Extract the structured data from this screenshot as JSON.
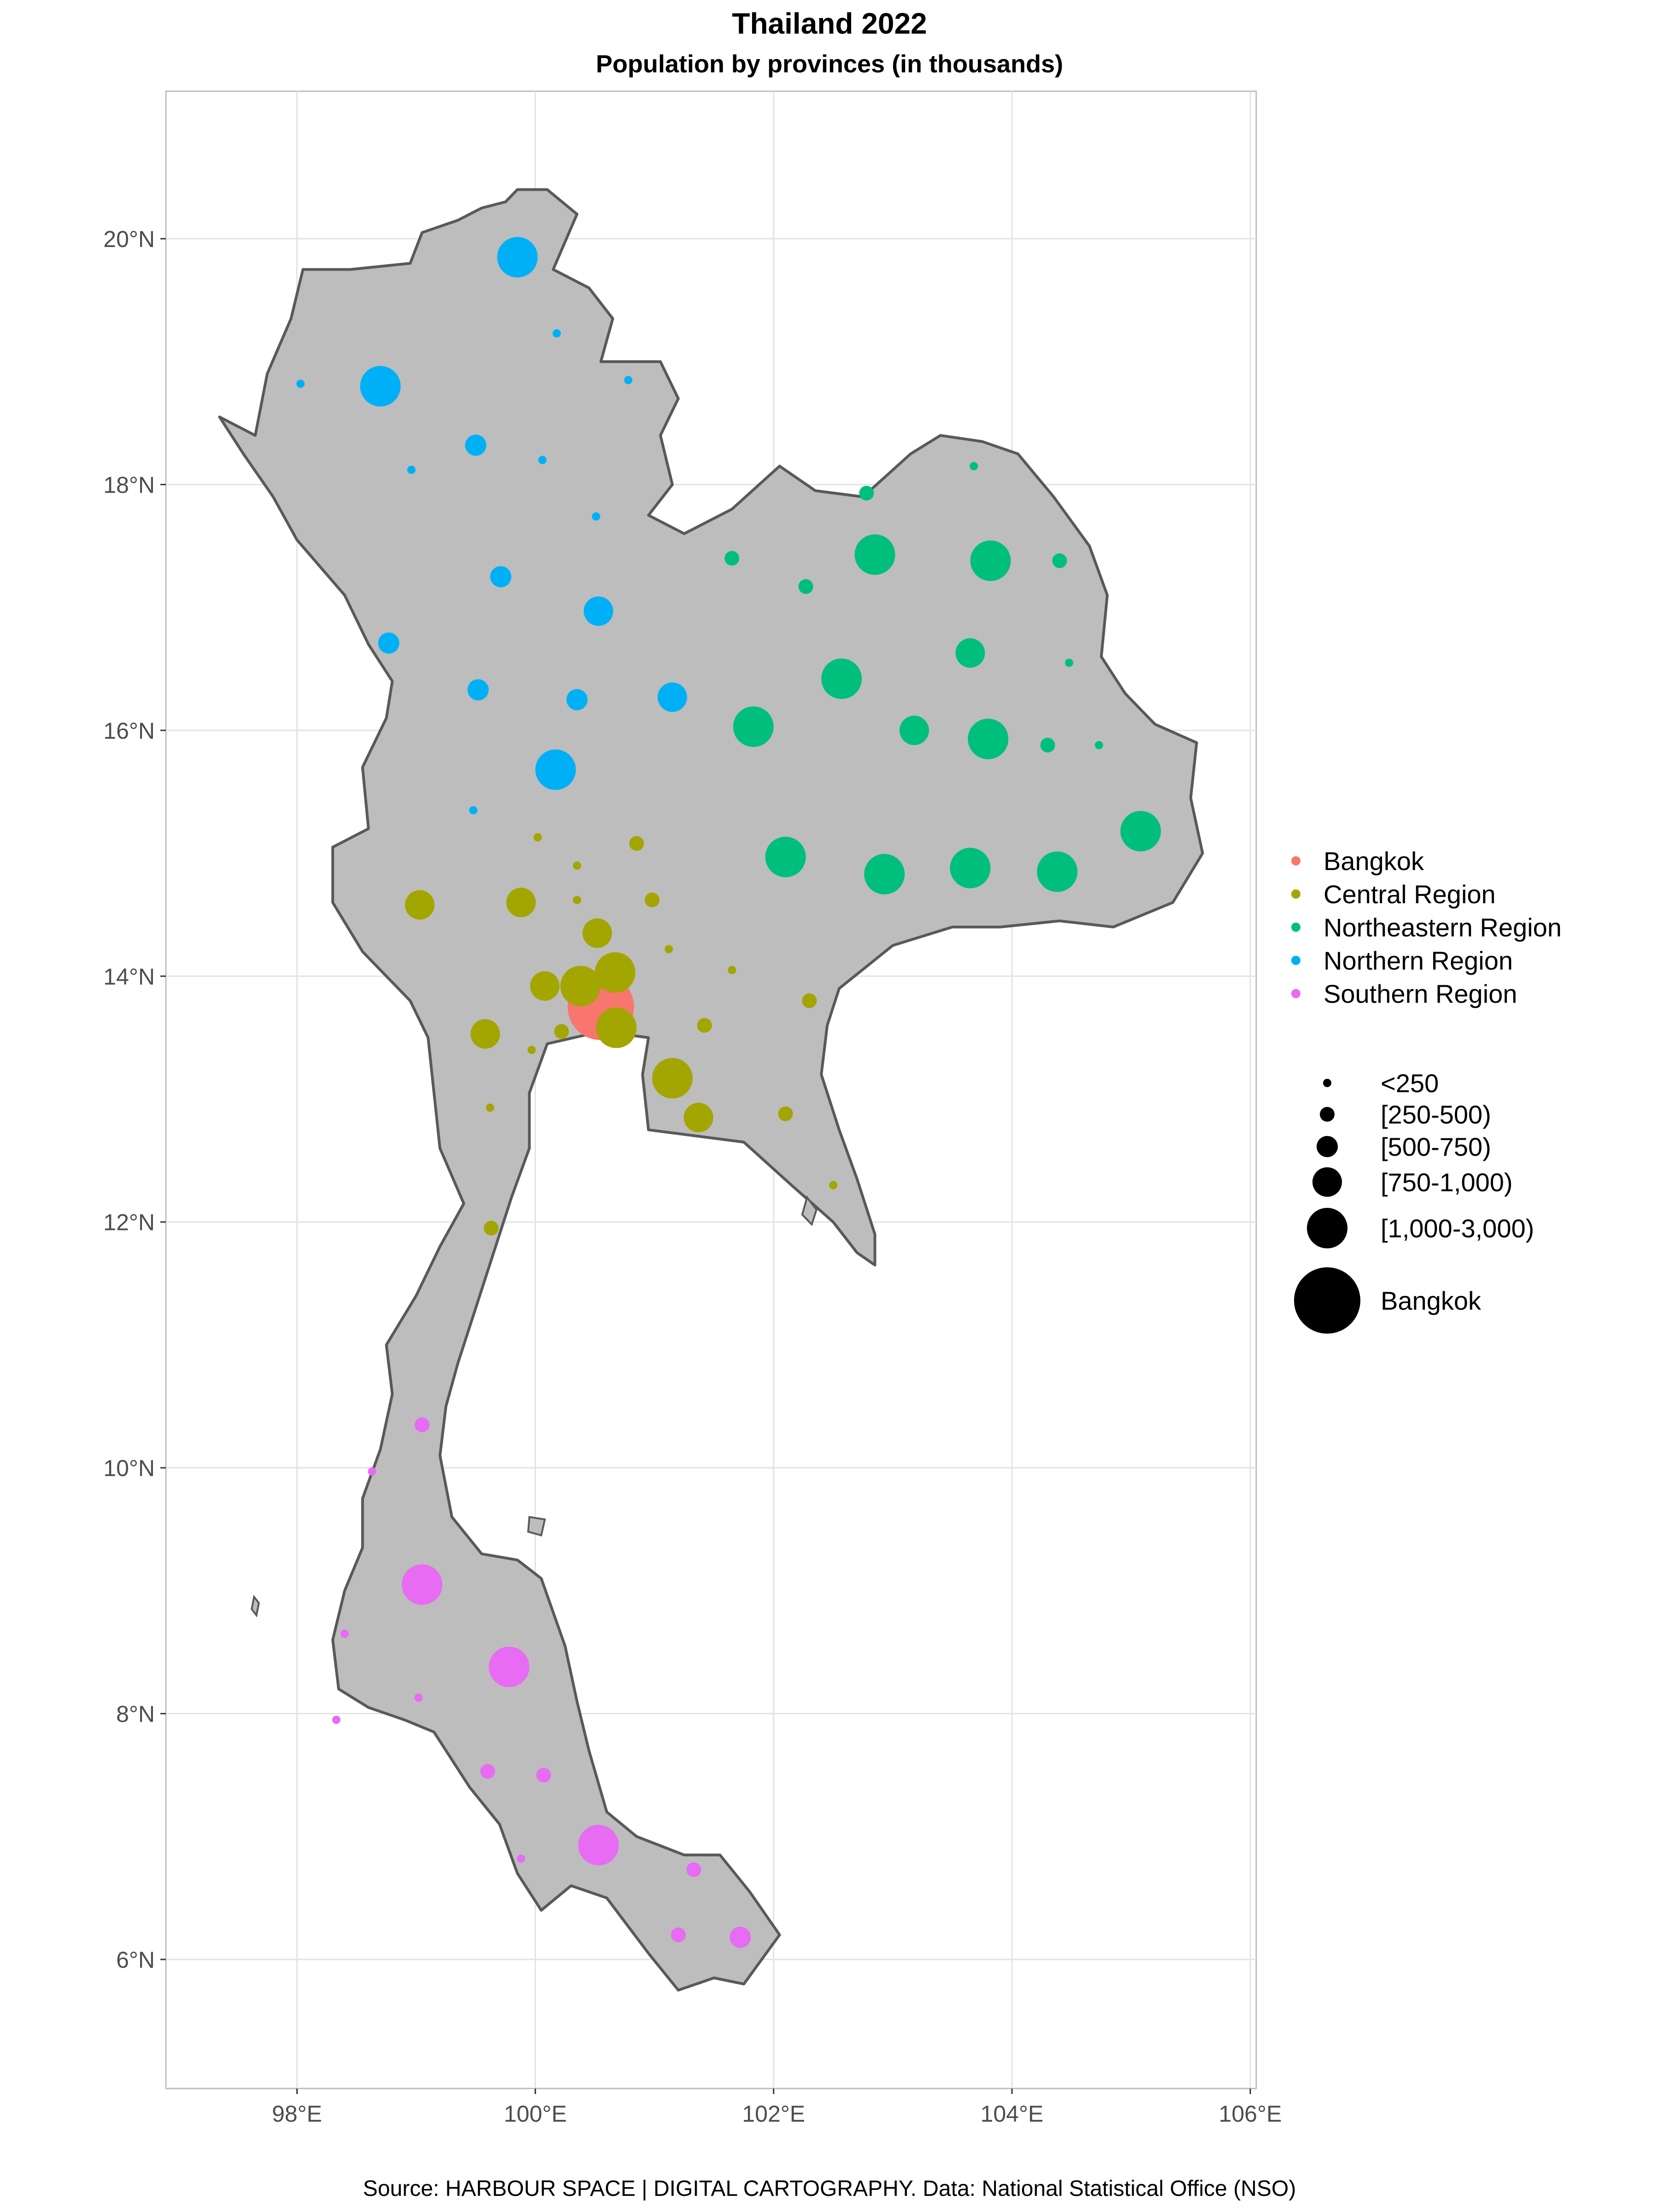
{
  "title": "Thailand 2022",
  "subtitle": "Population by provinces (in thousands)",
  "caption": "Source: HARBOUR SPACE | DIGITAL CARTOGRAPHY. Data: National Statistical Office (NSO)",
  "axes": {
    "x_ticks": [
      {
        "value": 98,
        "label": "98°E"
      },
      {
        "value": 100,
        "label": "100°E"
      },
      {
        "value": 102,
        "label": "102°E"
      },
      {
        "value": 104,
        "label": "104°E"
      },
      {
        "value": 106,
        "label": "106°E"
      }
    ],
    "y_ticks": [
      {
        "value": 6,
        "label": "6°N"
      },
      {
        "value": 8,
        "label": "8°N"
      },
      {
        "value": 10,
        "label": "10°N"
      },
      {
        "value": 12,
        "label": "12°N"
      },
      {
        "value": 14,
        "label": "14°N"
      },
      {
        "value": 16,
        "label": "16°N"
      },
      {
        "value": 18,
        "label": "18°N"
      },
      {
        "value": 20,
        "label": "20°N"
      }
    ],
    "xlim": [
      96.9,
      106.05
    ],
    "ylim": [
      4.95,
      21.2
    ],
    "grid": true
  },
  "colors": {
    "Bangkok": "#F8766D",
    "Central Region": "#A3A500",
    "Northeastern Region": "#00BF7D",
    "Northern Region": "#00B0F6",
    "Southern Region": "#E76BF3",
    "land": "#bdbdbd",
    "border": "#595959"
  },
  "legend_regions": [
    "Bangkok",
    "Central Region",
    "Northeastern Region",
    "Northern Region",
    "Southern Region"
  ],
  "legend_sizes": [
    {
      "label": "<250",
      "class": 1
    },
    {
      "label": "[250-500)",
      "class": 2
    },
    {
      "label": "[500-750)",
      "class": 3
    },
    {
      "label": "[750-1,000)",
      "class": 4
    },
    {
      "label": "[1,000-3,000)",
      "class": 5
    },
    {
      "label": "Bangkok",
      "class": 6
    }
  ],
  "chart_data": {
    "type": "scatter",
    "x_variable": "longitude",
    "y_variable": "latitude",
    "size_variable": "population class",
    "color_variable": "region",
    "points": [
      {
        "region": "Bangkok",
        "lon": 100.55,
        "lat": 13.75,
        "class": 6
      },
      {
        "region": "Northern Region",
        "lon": 99.85,
        "lat": 19.85,
        "class": 5
      },
      {
        "region": "Northern Region",
        "lon": 98.7,
        "lat": 18.8,
        "class": 5
      },
      {
        "region": "Northern Region",
        "lon": 100.17,
        "lat": 15.68,
        "class": 5
      },
      {
        "region": "Northern Region",
        "lon": 100.53,
        "lat": 16.97,
        "class": 4
      },
      {
        "region": "Northern Region",
        "lon": 101.15,
        "lat": 16.27,
        "class": 4
      },
      {
        "region": "Northern Region",
        "lon": 99.5,
        "lat": 18.32,
        "class": 3
      },
      {
        "region": "Northern Region",
        "lon": 99.71,
        "lat": 17.25,
        "class": 3
      },
      {
        "region": "Northern Region",
        "lon": 99.52,
        "lat": 16.33,
        "class": 3
      },
      {
        "region": "Northern Region",
        "lon": 100.35,
        "lat": 16.25,
        "class": 3
      },
      {
        "region": "Northern Region",
        "lon": 98.77,
        "lat": 16.71,
        "class": 3
      },
      {
        "region": "Northern Region",
        "lon": 100.18,
        "lat": 19.23,
        "class": 1
      },
      {
        "region": "Northern Region",
        "lon": 100.78,
        "lat": 18.85,
        "class": 1
      },
      {
        "region": "Northern Region",
        "lon": 98.03,
        "lat": 18.82,
        "class": 1
      },
      {
        "region": "Northern Region",
        "lon": 98.96,
        "lat": 18.12,
        "class": 1
      },
      {
        "region": "Northern Region",
        "lon": 100.06,
        "lat": 18.2,
        "class": 1
      },
      {
        "region": "Northern Region",
        "lon": 100.51,
        "lat": 17.74,
        "class": 1
      },
      {
        "region": "Northern Region",
        "lon": 99.48,
        "lat": 15.35,
        "class": 1
      },
      {
        "region": "Northeastern Region",
        "lon": 101.83,
        "lat": 16.03,
        "class": 5
      },
      {
        "region": "Northeastern Region",
        "lon": 102.57,
        "lat": 16.42,
        "class": 5
      },
      {
        "region": "Northeastern Region",
        "lon": 102.85,
        "lat": 17.43,
        "class": 5
      },
      {
        "region": "Northeastern Region",
        "lon": 103.82,
        "lat": 17.38,
        "class": 5
      },
      {
        "region": "Northeastern Region",
        "lon": 103.8,
        "lat": 15.93,
        "class": 5
      },
      {
        "region": "Northeastern Region",
        "lon": 102.1,
        "lat": 14.97,
        "class": 5
      },
      {
        "region": "Northeastern Region",
        "lon": 102.93,
        "lat": 14.83,
        "class": 5
      },
      {
        "region": "Northeastern Region",
        "lon": 103.65,
        "lat": 14.88,
        "class": 5
      },
      {
        "region": "Northeastern Region",
        "lon": 104.38,
        "lat": 14.85,
        "class": 5
      },
      {
        "region": "Northeastern Region",
        "lon": 105.08,
        "lat": 15.18,
        "class": 5
      },
      {
        "region": "Northeastern Region",
        "lon": 103.65,
        "lat": 16.63,
        "class": 4
      },
      {
        "region": "Northeastern Region",
        "lon": 103.18,
        "lat": 16.0,
        "class": 4
      },
      {
        "region": "Northeastern Region",
        "lon": 102.78,
        "lat": 17.93,
        "class": 2
      },
      {
        "region": "Northeastern Region",
        "lon": 101.65,
        "lat": 17.4,
        "class": 2
      },
      {
        "region": "Northeastern Region",
        "lon": 102.27,
        "lat": 17.17,
        "class": 2
      },
      {
        "region": "Northeastern Region",
        "lon": 104.4,
        "lat": 17.38,
        "class": 2
      },
      {
        "region": "Northeastern Region",
        "lon": 104.3,
        "lat": 15.88,
        "class": 2
      },
      {
        "region": "Northeastern Region",
        "lon": 103.68,
        "lat": 18.15,
        "class": 1
      },
      {
        "region": "Northeastern Region",
        "lon": 104.48,
        "lat": 16.55,
        "class": 1
      },
      {
        "region": "Northeastern Region",
        "lon": 104.73,
        "lat": 15.88,
        "class": 1
      },
      {
        "region": "Central Region",
        "lon": 100.67,
        "lat": 14.03,
        "class": 5
      },
      {
        "region": "Central Region",
        "lon": 100.68,
        "lat": 13.58,
        "class": 5
      },
      {
        "region": "Central Region",
        "lon": 100.38,
        "lat": 13.92,
        "class": 5
      },
      {
        "region": "Central Region",
        "lon": 101.15,
        "lat": 13.17,
        "class": 5
      },
      {
        "region": "Central Region",
        "lon": 99.03,
        "lat": 14.58,
        "class": 4
      },
      {
        "region": "Central Region",
        "lon": 99.88,
        "lat": 14.6,
        "class": 4
      },
      {
        "region": "Central Region",
        "lon": 100.52,
        "lat": 14.35,
        "class": 4
      },
      {
        "region": "Central Region",
        "lon": 100.08,
        "lat": 13.92,
        "class": 4
      },
      {
        "region": "Central Region",
        "lon": 99.58,
        "lat": 13.53,
        "class": 4
      },
      {
        "region": "Central Region",
        "lon": 101.37,
        "lat": 12.85,
        "class": 4
      },
      {
        "region": "Central Region",
        "lon": 100.85,
        "lat": 15.08,
        "class": 2
      },
      {
        "region": "Central Region",
        "lon": 100.98,
        "lat": 14.62,
        "class": 2
      },
      {
        "region": "Central Region",
        "lon": 100.22,
        "lat": 13.55,
        "class": 2
      },
      {
        "region": "Central Region",
        "lon": 101.42,
        "lat": 13.6,
        "class": 2
      },
      {
        "region": "Central Region",
        "lon": 102.3,
        "lat": 13.8,
        "class": 2
      },
      {
        "region": "Central Region",
        "lon": 102.1,
        "lat": 12.88,
        "class": 2
      },
      {
        "region": "Central Region",
        "lon": 99.63,
        "lat": 11.95,
        "class": 2
      },
      {
        "region": "Central Region",
        "lon": 100.02,
        "lat": 15.13,
        "class": 1
      },
      {
        "region": "Central Region",
        "lon": 100.35,
        "lat": 14.9,
        "class": 1
      },
      {
        "region": "Central Region",
        "lon": 100.35,
        "lat": 14.62,
        "class": 1
      },
      {
        "region": "Central Region",
        "lon": 101.12,
        "lat": 14.22,
        "class": 1
      },
      {
        "region": "Central Region",
        "lon": 101.65,
        "lat": 14.05,
        "class": 1
      },
      {
        "region": "Central Region",
        "lon": 99.97,
        "lat": 13.4,
        "class": 1
      },
      {
        "region": "Central Region",
        "lon": 99.62,
        "lat": 12.93,
        "class": 1
      },
      {
        "region": "Central Region",
        "lon": 102.5,
        "lat": 12.3,
        "class": 1
      },
      {
        "region": "Southern Region",
        "lon": 99.05,
        "lat": 9.05,
        "class": 5
      },
      {
        "region": "Southern Region",
        "lon": 99.78,
        "lat": 8.38,
        "class": 5
      },
      {
        "region": "Southern Region",
        "lon": 100.53,
        "lat": 6.93,
        "class": 5
      },
      {
        "region": "Southern Region",
        "lon": 101.72,
        "lat": 6.18,
        "class": 3
      },
      {
        "region": "Southern Region",
        "lon": 99.05,
        "lat": 10.35,
        "class": 2
      },
      {
        "region": "Southern Region",
        "lon": 99.6,
        "lat": 7.53,
        "class": 2
      },
      {
        "region": "Southern Region",
        "lon": 100.07,
        "lat": 7.5,
        "class": 2
      },
      {
        "region": "Southern Region",
        "lon": 101.33,
        "lat": 6.73,
        "class": 2
      },
      {
        "region": "Southern Region",
        "lon": 101.2,
        "lat": 6.2,
        "class": 2
      },
      {
        "region": "Southern Region",
        "lon": 98.4,
        "lat": 8.65,
        "class": 1
      },
      {
        "region": "Southern Region",
        "lon": 98.33,
        "lat": 7.95,
        "class": 1
      },
      {
        "region": "Southern Region",
        "lon": 99.02,
        "lat": 8.13,
        "class": 1
      },
      {
        "region": "Southern Region",
        "lon": 98.63,
        "lat": 9.97,
        "class": 1
      },
      {
        "region": "Southern Region",
        "lon": 99.88,
        "lat": 6.82,
        "class": 1
      }
    ]
  },
  "outline": [
    [
      97.35,
      18.55
    ],
    [
      97.65,
      18.4
    ],
    [
      97.75,
      18.9
    ],
    [
      97.95,
      19.35
    ],
    [
      98.05,
      19.75
    ],
    [
      98.45,
      19.75
    ],
    [
      98.95,
      19.8
    ],
    [
      99.05,
      20.05
    ],
    [
      99.35,
      20.15
    ],
    [
      99.55,
      20.25
    ],
    [
      99.75,
      20.3
    ],
    [
      99.85,
      20.4
    ],
    [
      100.1,
      20.4
    ],
    [
      100.35,
      20.2
    ],
    [
      100.15,
      19.75
    ],
    [
      100.45,
      19.6
    ],
    [
      100.65,
      19.35
    ],
    [
      100.55,
      19.0
    ],
    [
      101.05,
      19.0
    ],
    [
      101.2,
      18.7
    ],
    [
      101.05,
      18.4
    ],
    [
      101.15,
      18.0
    ],
    [
      100.95,
      17.75
    ],
    [
      101.25,
      17.6
    ],
    [
      101.65,
      17.8
    ],
    [
      102.05,
      18.15
    ],
    [
      102.35,
      17.95
    ],
    [
      102.75,
      17.9
    ],
    [
      103.15,
      18.25
    ],
    [
      103.4,
      18.4
    ],
    [
      103.75,
      18.35
    ],
    [
      104.05,
      18.25
    ],
    [
      104.35,
      17.9
    ],
    [
      104.65,
      17.5
    ],
    [
      104.8,
      17.1
    ],
    [
      104.75,
      16.6
    ],
    [
      104.95,
      16.3
    ],
    [
      105.2,
      16.05
    ],
    [
      105.55,
      15.9
    ],
    [
      105.5,
      15.45
    ],
    [
      105.6,
      15.0
    ],
    [
      105.35,
      14.6
    ],
    [
      104.85,
      14.4
    ],
    [
      104.4,
      14.45
    ],
    [
      103.9,
      14.4
    ],
    [
      103.5,
      14.4
    ],
    [
      103.0,
      14.25
    ],
    [
      102.55,
      13.9
    ],
    [
      102.45,
      13.6
    ],
    [
      102.4,
      13.2
    ],
    [
      102.55,
      12.75
    ],
    [
      102.7,
      12.35
    ],
    [
      102.85,
      11.9
    ],
    [
      102.85,
      11.65
    ],
    [
      102.7,
      11.75
    ],
    [
      102.5,
      12.0
    ],
    [
      102.15,
      12.3
    ],
    [
      101.75,
      12.65
    ],
    [
      101.35,
      12.7
    ],
    [
      100.95,
      12.75
    ],
    [
      100.9,
      13.2
    ],
    [
      100.95,
      13.5
    ],
    [
      100.55,
      13.55
    ],
    [
      100.1,
      13.45
    ],
    [
      99.95,
      13.05
    ],
    [
      99.95,
      12.6
    ],
    [
      99.8,
      12.2
    ],
    [
      99.65,
      11.75
    ],
    [
      99.5,
      11.3
    ],
    [
      99.35,
      10.85
    ],
    [
      99.25,
      10.5
    ],
    [
      99.2,
      10.1
    ],
    [
      99.3,
      9.6
    ],
    [
      99.55,
      9.3
    ],
    [
      99.85,
      9.25
    ],
    [
      100.05,
      9.1
    ],
    [
      100.25,
      8.55
    ],
    [
      100.35,
      8.1
    ],
    [
      100.45,
      7.7
    ],
    [
      100.6,
      7.2
    ],
    [
      100.85,
      7.0
    ],
    [
      101.25,
      6.85
    ],
    [
      101.55,
      6.85
    ],
    [
      101.8,
      6.55
    ],
    [
      102.05,
      6.2
    ],
    [
      101.75,
      5.8
    ],
    [
      101.5,
      5.85
    ],
    [
      101.2,
      5.75
    ],
    [
      100.95,
      6.05
    ],
    [
      100.6,
      6.5
    ],
    [
      100.3,
      6.6
    ],
    [
      100.05,
      6.4
    ],
    [
      99.85,
      6.7
    ],
    [
      99.7,
      7.1
    ],
    [
      99.45,
      7.4
    ],
    [
      99.15,
      7.85
    ],
    [
      98.9,
      7.95
    ],
    [
      98.6,
      8.05
    ],
    [
      98.35,
      8.2
    ],
    [
      98.3,
      8.6
    ],
    [
      98.4,
      9.0
    ],
    [
      98.55,
      9.35
    ],
    [
      98.55,
      9.75
    ],
    [
      98.7,
      10.15
    ],
    [
      98.8,
      10.6
    ],
    [
      98.75,
      11.0
    ],
    [
      99.0,
      11.4
    ],
    [
      99.2,
      11.8
    ],
    [
      99.4,
      12.15
    ],
    [
      99.2,
      12.6
    ],
    [
      99.15,
      13.05
    ],
    [
      99.1,
      13.5
    ],
    [
      98.95,
      13.8
    ],
    [
      98.55,
      14.2
    ],
    [
      98.3,
      14.6
    ],
    [
      98.3,
      15.05
    ],
    [
      98.6,
      15.2
    ],
    [
      98.55,
      15.7
    ],
    [
      98.75,
      16.1
    ],
    [
      98.8,
      16.4
    ],
    [
      98.6,
      16.7
    ],
    [
      98.4,
      17.1
    ],
    [
      98.0,
      17.55
    ],
    [
      97.8,
      17.9
    ],
    [
      97.55,
      18.25
    ]
  ],
  "islands": [
    [
      [
        102.28,
        12.2
      ],
      [
        102.36,
        12.1
      ],
      [
        102.32,
        11.98
      ],
      [
        102.24,
        12.06
      ]
    ],
    [
      [
        99.95,
        9.6
      ],
      [
        100.08,
        9.58
      ],
      [
        100.05,
        9.45
      ],
      [
        99.94,
        9.48
      ]
    ],
    [
      [
        97.64,
        8.95
      ],
      [
        97.68,
        8.9
      ],
      [
        97.66,
        8.8
      ],
      [
        97.62,
        8.85
      ]
    ]
  ]
}
